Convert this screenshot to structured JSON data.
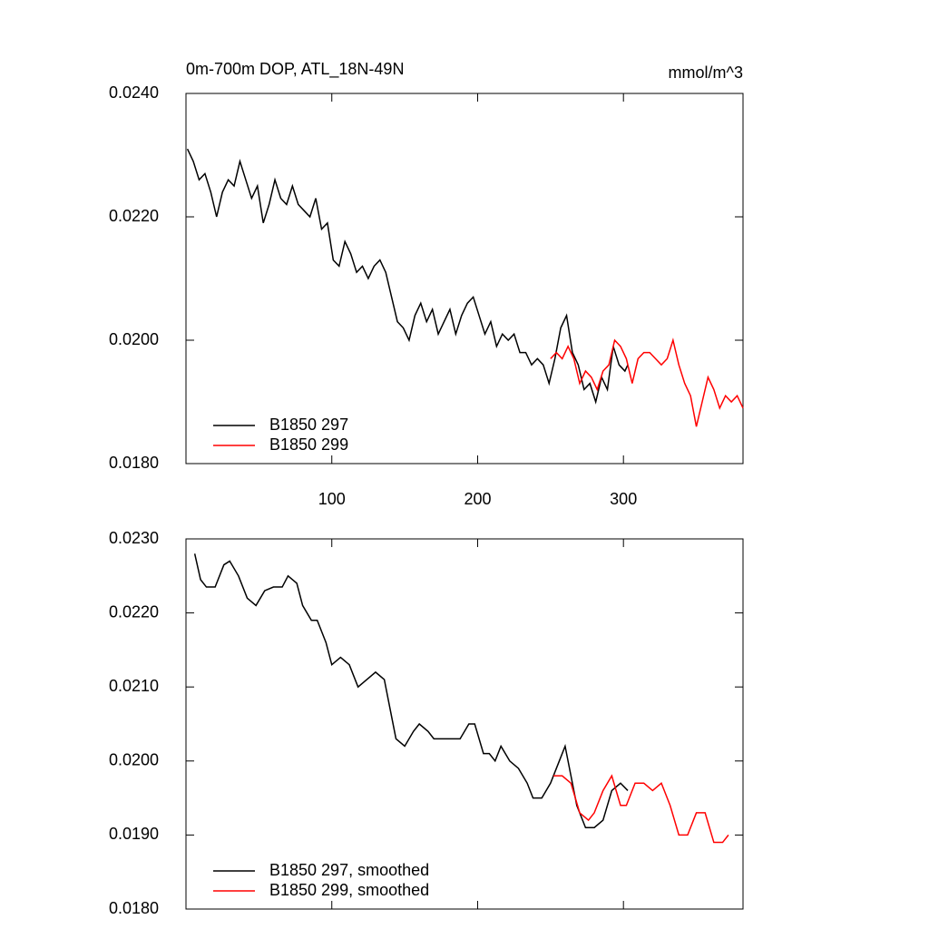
{
  "chart_data": [
    {
      "type": "line",
      "title": "0m-700m DOP, ATL_18N-49N",
      "units_label": "mmol/m^3",
      "xlim": [
        0,
        382
      ],
      "xticks": [
        100,
        200,
        300
      ],
      "x_tick_labels": true,
      "ylim": [
        0.018,
        0.024
      ],
      "yticks": [
        {
          "value": 0.018,
          "label": "0.0180"
        },
        {
          "value": 0.02,
          "label": "0.0200"
        },
        {
          "value": 0.022,
          "label": "0.0220"
        },
        {
          "value": 0.024,
          "label": "0.0240"
        }
      ],
      "legend": "lower left",
      "series": [
        {
          "name": "B1850 297",
          "color": "#000000",
          "x": [
            1,
            5,
            9,
            13,
            17,
            21,
            25,
            29,
            33,
            37,
            41,
            45,
            49,
            53,
            57,
            61,
            65,
            69,
            73,
            77,
            81,
            85,
            89,
            93,
            97,
            101,
            105,
            109,
            113,
            117,
            121,
            125,
            129,
            133,
            137,
            141,
            145,
            149,
            153,
            157,
            161,
            165,
            169,
            173,
            177,
            181,
            185,
            189,
            193,
            197,
            201,
            205,
            209,
            213,
            217,
            221,
            225,
            229,
            233,
            237,
            241,
            245,
            249,
            253,
            257,
            261,
            265,
            269,
            273,
            277,
            281,
            285,
            289,
            293,
            297,
            301,
            303
          ],
          "values": [
            0.0231,
            0.0229,
            0.0226,
            0.0227,
            0.0224,
            0.022,
            0.0224,
            0.0226,
            0.0225,
            0.0229,
            0.0226,
            0.0223,
            0.0225,
            0.0219,
            0.0222,
            0.0226,
            0.0223,
            0.0222,
            0.0225,
            0.0222,
            0.0221,
            0.022,
            0.0223,
            0.0218,
            0.0219,
            0.0213,
            0.0212,
            0.0216,
            0.0214,
            0.0211,
            0.0212,
            0.021,
            0.0212,
            0.0213,
            0.0211,
            0.0207,
            0.0203,
            0.0202,
            0.02,
            0.0204,
            0.0206,
            0.0203,
            0.0205,
            0.0201,
            0.0203,
            0.0205,
            0.0201,
            0.0204,
            0.0206,
            0.0207,
            0.0204,
            0.0201,
            0.0203,
            0.0199,
            0.0201,
            0.02,
            0.0201,
            0.0198,
            0.0198,
            0.0196,
            0.0197,
            0.0196,
            0.0193,
            0.0197,
            0.0202,
            0.0204,
            0.0198,
            0.0196,
            0.0192,
            0.0193,
            0.019,
            0.0194,
            0.0192,
            0.0199,
            0.0196,
            0.0195,
            0.0196
          ]
        },
        {
          "name": "B1850 299",
          "color": "#ff0000",
          "x": [
            250,
            254,
            258,
            262,
            266,
            270,
            274,
            278,
            282,
            286,
            290,
            294,
            298,
            302,
            306,
            310,
            314,
            318,
            322,
            326,
            330,
            334,
            338,
            342,
            346,
            350,
            354,
            358,
            362,
            366,
            370,
            374,
            378,
            382
          ],
          "values": [
            0.0197,
            0.0198,
            0.0197,
            0.0199,
            0.0197,
            0.0193,
            0.0195,
            0.0194,
            0.0192,
            0.0195,
            0.0196,
            0.02,
            0.0199,
            0.0197,
            0.0193,
            0.0197,
            0.0198,
            0.0198,
            0.0197,
            0.0196,
            0.0197,
            0.02,
            0.0196,
            0.0193,
            0.0191,
            0.0186,
            0.019,
            0.0194,
            0.0192,
            0.0189,
            0.0191,
            0.019,
            0.0191,
            0.0189
          ]
        }
      ]
    },
    {
      "type": "line",
      "xlim": [
        0,
        382
      ],
      "xticks": [
        100,
        200,
        300
      ],
      "x_tick_labels": false,
      "ylim": [
        0.018,
        0.023
      ],
      "yticks": [
        {
          "value": 0.018,
          "label": "0.0180"
        },
        {
          "value": 0.019,
          "label": "0.0190"
        },
        {
          "value": 0.02,
          "label": "0.0200"
        },
        {
          "value": 0.021,
          "label": "0.0210"
        },
        {
          "value": 0.022,
          "label": "0.0220"
        },
        {
          "value": 0.023,
          "label": "0.0230"
        }
      ],
      "legend": "lower left",
      "series": [
        {
          "name": "B1850 297, smoothed",
          "color": "#000000",
          "x": [
            6,
            10,
            14,
            20,
            26,
            30,
            36,
            42,
            48,
            54,
            60,
            66,
            70,
            76,
            80,
            86,
            90,
            96,
            100,
            106,
            112,
            118,
            124,
            130,
            136,
            140,
            144,
            150,
            156,
            160,
            166,
            170,
            176,
            182,
            188,
            194,
            198,
            204,
            208,
            212,
            216,
            222,
            228,
            234,
            238,
            244,
            250,
            256,
            260,
            264,
            268,
            274,
            280,
            286,
            292,
            298,
            303
          ],
          "values": [
            0.0228,
            0.02245,
            0.02235,
            0.02235,
            0.02265,
            0.0227,
            0.0225,
            0.0222,
            0.0221,
            0.0223,
            0.02235,
            0.02235,
            0.0225,
            0.0224,
            0.0221,
            0.0219,
            0.0219,
            0.0216,
            0.0213,
            0.0214,
            0.0213,
            0.021,
            0.0211,
            0.0212,
            0.0211,
            0.0207,
            0.0203,
            0.0202,
            0.0204,
            0.0205,
            0.0204,
            0.0203,
            0.0203,
            0.0203,
            0.0203,
            0.0205,
            0.0205,
            0.0201,
            0.0201,
            0.02,
            0.0202,
            0.02,
            0.0199,
            0.0197,
            0.0195,
            0.0195,
            0.0197,
            0.02,
            0.0202,
            0.0198,
            0.0194,
            0.0191,
            0.0191,
            0.0192,
            0.0196,
            0.0197,
            0.0196
          ]
        },
        {
          "name": "B1850 299, smoothed",
          "color": "#ff0000",
          "x": [
            252,
            258,
            264,
            270,
            276,
            280,
            286,
            292,
            298,
            302,
            308,
            314,
            320,
            326,
            332,
            338,
            344,
            350,
            356,
            362,
            368,
            372
          ],
          "values": [
            0.0198,
            0.0198,
            0.0197,
            0.0193,
            0.0192,
            0.0193,
            0.0196,
            0.0198,
            0.0194,
            0.0194,
            0.0197,
            0.0197,
            0.0196,
            0.0197,
            0.0194,
            0.019,
            0.019,
            0.0193,
            0.0193,
            0.0189,
            0.0189,
            0.019
          ]
        }
      ]
    }
  ]
}
